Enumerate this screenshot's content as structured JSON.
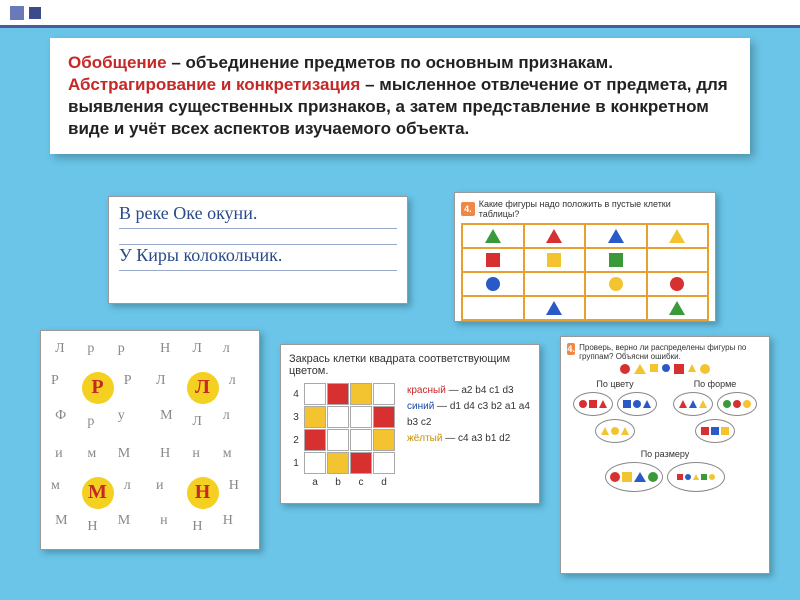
{
  "colors": {
    "red": "#d73030",
    "green": "#3a9a3a",
    "blue": "#2a5ac8",
    "yellow": "#f4c430",
    "orange": "#e8a030",
    "highlight_red": "#c62828",
    "bg": "#6ac5e8"
  },
  "text": {
    "part1_hl": "Обобщение",
    "part1": " – объединение предметов по основным признакам. ",
    "part2_hl": "Абстрагирование и конкретизация",
    "part2": " – мысленное отвлечение от предмета, для выявления существенных признаков, а затем представление в конкретном виде и учёт всех аспектов изучаемого объекта."
  },
  "handwriting": {
    "line1": "В реке Оке окуни.",
    "line2": "У Киры колокольчик."
  },
  "shape_table": {
    "num": "4.",
    "title": "Какие фигуры надо положить в пустые клетки таблицы?",
    "grid": [
      [
        {
          "t": "tri",
          "c": "green"
        },
        {
          "t": "tri",
          "c": "red"
        },
        {
          "t": "tri",
          "c": "blue"
        },
        {
          "t": "tri",
          "c": "yellow"
        }
      ],
      [
        {
          "t": "sq",
          "c": "red"
        },
        {
          "t": "sq",
          "c": "yellow"
        },
        {
          "t": "sq",
          "c": "green"
        },
        {
          "t": "",
          "c": ""
        }
      ],
      [
        {
          "t": "ci",
          "c": "blue"
        },
        {
          "t": "",
          "c": ""
        },
        {
          "t": "ci",
          "c": "yellow"
        },
        {
          "t": "ci",
          "c": "red"
        }
      ],
      [
        {
          "t": "",
          "c": ""
        },
        {
          "t": "tri",
          "c": "blue"
        },
        {
          "t": "",
          "c": ""
        },
        {
          "t": "tri",
          "c": "green"
        }
      ]
    ]
  },
  "letters": {
    "cells": [
      {
        "big": "Р",
        "around": [
          "Л",
          "р",
          "Р",
          "Р",
          "Ф",
          "р",
          "у",
          "р"
        ]
      },
      {
        "big": "Л",
        "around": [
          "Н",
          "л",
          "Л",
          "л",
          "М",
          "Л",
          "л",
          "Л"
        ]
      },
      {
        "big": "М",
        "around": [
          "и",
          "М",
          "м",
          "л",
          "М",
          "Н",
          "М",
          "м"
        ]
      },
      {
        "big": "Н",
        "around": [
          "Н",
          "м",
          "и",
          "Н",
          "н",
          "Н",
          "Н",
          "н"
        ]
      }
    ]
  },
  "color_grid": {
    "title": "Закрась клетки квадрата соответствующим цветом.",
    "rows": [
      "4",
      "3",
      "2",
      "1"
    ],
    "cols": [
      "a",
      "b",
      "c",
      "d"
    ],
    "cells": {
      "a2": "red",
      "b4": "red",
      "c1": "red",
      "d3": "red",
      "b1": "yellow",
      "d2": "yellow",
      "c4": "yellow",
      "a3": "yellow"
    },
    "legend": [
      {
        "name": "красный",
        "codes": "a2 b4 c1 d3",
        "cls": "r"
      },
      {
        "name": "синий",
        "codes": "d1 d4 c3 b2 a1 a4 b3 c2",
        "cls": "b"
      },
      {
        "name": "жёлтый",
        "codes": "c4 a3 b1 d2",
        "cls": "y"
      }
    ]
  },
  "groups": {
    "num": "4.",
    "title": "Проверь, верно ли распределены фигуры по группам? Объясни ошибки.",
    "by_color": "По цвету",
    "by_shape": "По форме",
    "by_size": "По размеру"
  }
}
